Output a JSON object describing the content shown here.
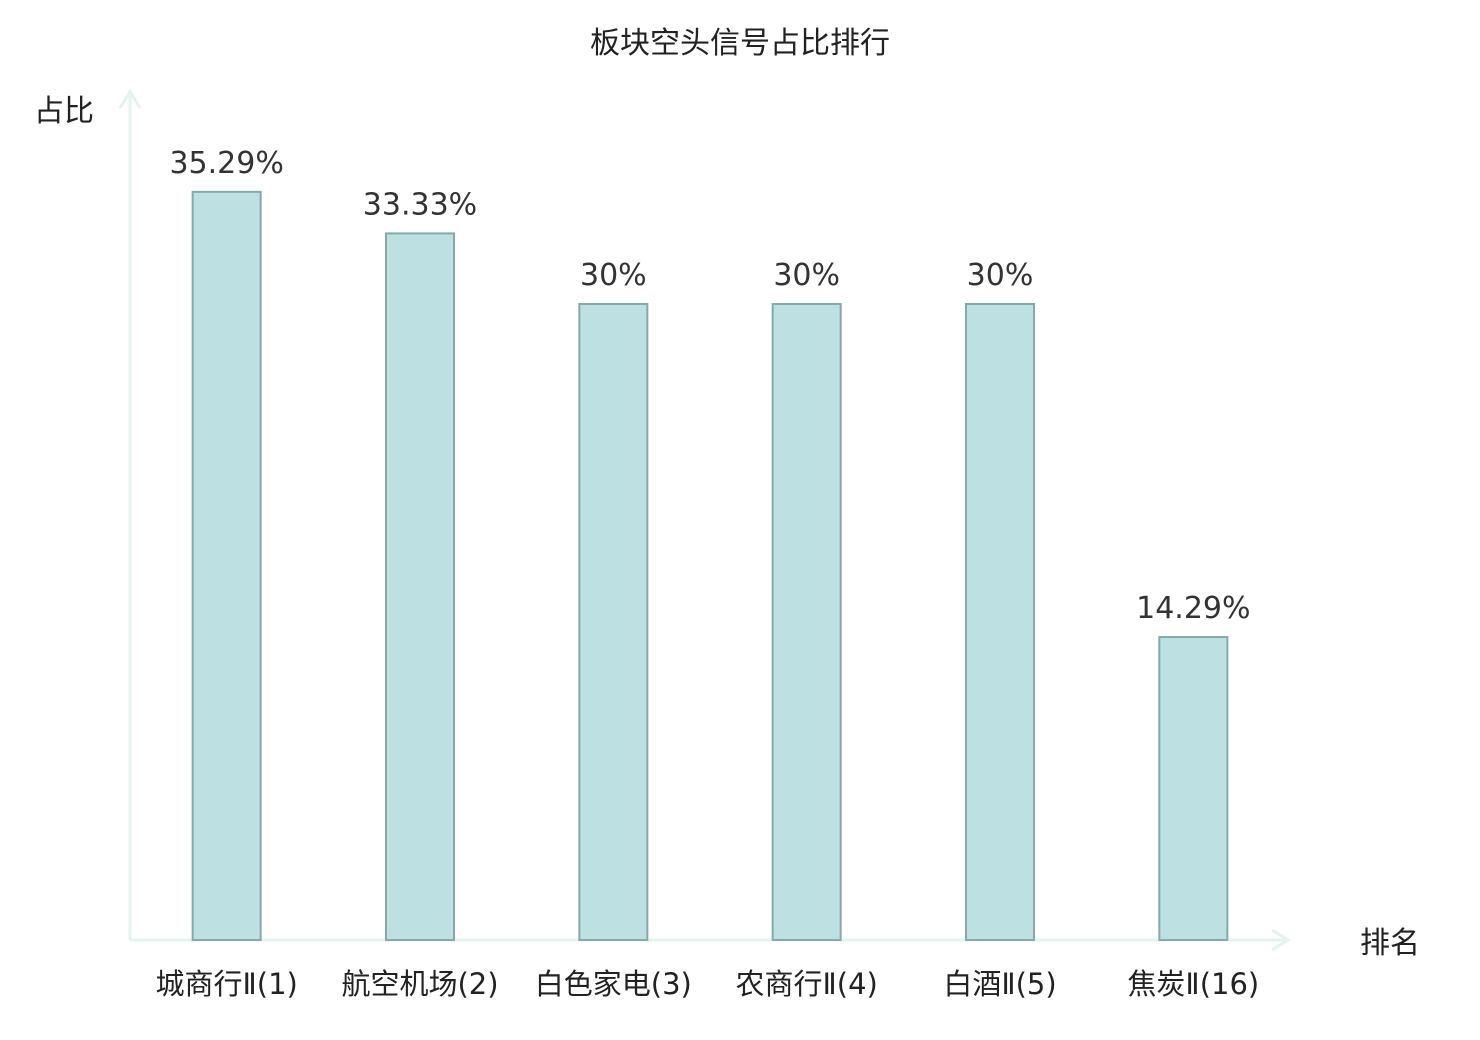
{
  "chart_data": {
    "type": "bar",
    "title": "板块空头信号占比排行",
    "ylabel": "占比",
    "xlabel": "排名",
    "categories": [
      "城商行Ⅱ(1)",
      "航空机场(2)",
      "白色家电(3)",
      "农商行Ⅱ(4)",
      "白酒Ⅱ(5)",
      "焦炭Ⅱ(16)"
    ],
    "values": [
      35.29,
      33.33,
      30,
      30,
      30,
      14.29
    ],
    "value_labels": [
      "35.29%",
      "33.33%",
      "30%",
      "30%",
      "30%",
      "14.29%"
    ],
    "highlight_index": 5,
    "ylim": [
      0,
      40
    ],
    "grid": false,
    "colors": {
      "bar_fill": "#bde0e3",
      "bar_stroke": "#86a9a9",
      "axis": "#e3f3f0",
      "highlight_label": "#d40000",
      "text": "#222222"
    }
  }
}
